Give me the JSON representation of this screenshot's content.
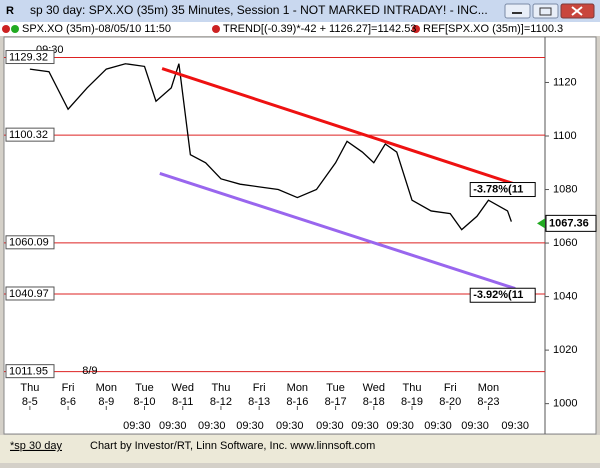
{
  "window": {
    "title": "sp 30 day: SPX.XO (35m) 35 Minutes, Session 1 - NOT MARKED INTRADAY! - INC...",
    "legend": [
      "SPX.XO (35m)-08/05/10 11:50",
      "TREND[(-0.39)*-42 + 1126.27]=1142.53",
      "REF[SPX.XO (35m)]=1100.3"
    ],
    "tab": "*sp 30 day",
    "status": "Chart by Investor/RT, Linn Software, Inc. www.linnsoft.com"
  },
  "chart_data": {
    "type": "line",
    "corner_time": "09:30",
    "xlim": [
      -0.52,
      13.48
    ],
    "ylim": [
      998,
      1134
    ],
    "yticks": [
      1000,
      1020,
      1040,
      1060,
      1080,
      1100,
      1120
    ],
    "series": [
      {
        "name": "SPX.XO (35m)",
        "color": "#000000",
        "x": [
          0,
          0.5,
          1,
          1.5,
          2,
          2.5,
          3,
          3.3,
          3.7,
          3.9,
          4.2,
          4.6,
          5,
          5.5,
          6,
          6.5,
          7,
          7.5,
          8,
          8.3,
          8.7,
          9,
          9.3,
          9.6,
          10,
          10.5,
          11,
          11.3,
          11.7,
          12,
          12.5,
          12.6
        ],
        "values": [
          1125,
          1124,
          1110,
          1118,
          1125,
          1127,
          1126,
          1113,
          1118,
          1127,
          1093,
          1090,
          1084,
          1082,
          1081,
          1080,
          1077,
          1080,
          1090,
          1098,
          1094,
          1090,
          1097,
          1094,
          1076,
          1072,
          1071,
          1065,
          1070,
          1076,
          1072,
          1068
        ]
      },
      {
        "name": "TREND",
        "color": "#ee1111",
        "x": [
          3.46,
          12.7
        ],
        "values": [
          1125.2,
          1082
        ]
      },
      {
        "name": "TREND",
        "color": "#9966ee",
        "x": [
          3.4,
          12.7
        ],
        "values": [
          1086,
          1043
        ]
      }
    ],
    "last_price": 1067.36,
    "levels": [
      1129.32,
      1100.32,
      1060.09,
      1040.97,
      1011.95
    ],
    "level_color": "#dd2222",
    "annotations": [
      {
        "text": "-3.78%(11",
        "x": 12.7,
        "y": 1080
      },
      {
        "text": "-3.92%(11",
        "x": 12.7,
        "y": 1040.5
      }
    ],
    "days": [
      {
        "x": 0,
        "name": "Thu",
        "date": "8-5"
      },
      {
        "x": 1,
        "name": "Fri",
        "date": "8-6"
      },
      {
        "x": 2,
        "name": "Mon",
        "date": "8-9"
      },
      {
        "x": 3,
        "name": "Tue",
        "date": "8-10"
      },
      {
        "x": 4,
        "name": "Wed",
        "date": "8-11"
      },
      {
        "x": 5,
        "name": "Thu",
        "date": "8-12"
      },
      {
        "x": 6,
        "name": "Fri",
        "date": "8-13"
      },
      {
        "x": 7,
        "name": "Mon",
        "date": "8-16"
      },
      {
        "x": 8,
        "name": "Tue",
        "date": "8-17"
      },
      {
        "x": 9,
        "name": "Wed",
        "date": "8-18"
      },
      {
        "x": 10,
        "name": "Thu",
        "date": "8-19"
      },
      {
        "x": 11,
        "name": "Fri",
        "date": "8-20"
      },
      {
        "x": 12,
        "name": "Mon",
        "date": "8-23"
      }
    ],
    "xticks": [
      {
        "value": 1.57,
        "label": "8/9"
      }
    ],
    "time_ticks": [
      {
        "value": 2.8,
        "label": "09:30"
      },
      {
        "value": 3.74,
        "label": "09:30"
      },
      {
        "value": 4.76,
        "label": "09:30"
      },
      {
        "value": 5.76,
        "label": "09:30"
      },
      {
        "value": 6.8,
        "label": "09:30"
      },
      {
        "value": 7.85,
        "label": "09:30"
      },
      {
        "value": 8.77,
        "label": "09:30"
      },
      {
        "value": 9.69,
        "label": "09:30"
      },
      {
        "value": 10.68,
        "label": "09:30"
      },
      {
        "value": 11.65,
        "label": "09:30"
      },
      {
        "value": 12.7,
        "label": "09:30"
      }
    ]
  }
}
